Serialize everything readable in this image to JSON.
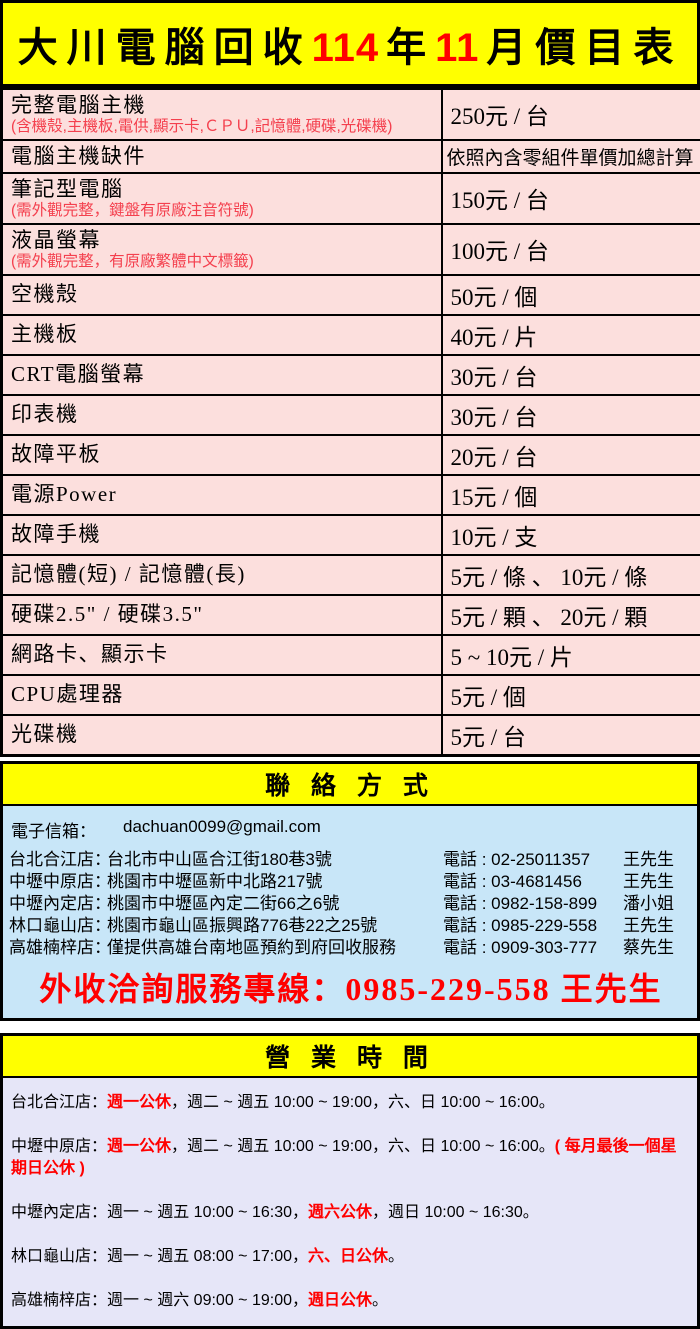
{
  "title": {
    "segments": [
      {
        "text": "大川電腦回收",
        "color": "black",
        "type": "cjk"
      },
      {
        "text": "114",
        "color": "red",
        "type": "num"
      },
      {
        "text": "年",
        "color": "black",
        "type": "cjk"
      },
      {
        "text": "11",
        "color": "red",
        "type": "num"
      },
      {
        "text": "月價目表",
        "color": "black",
        "type": "cjk"
      }
    ]
  },
  "price_table": {
    "rows": [
      {
        "item": "完整電腦主機",
        "note": "(含機殼,主機板,電供,顯示卡,ＣＰＵ,記憶體,硬碟,光碟機)",
        "price": "250元 / 台"
      },
      {
        "item": "電腦主機缺件",
        "price": "依照內含零組件單價加總計算"
      },
      {
        "item": "筆記型電腦",
        "note": "(需外觀完整，鍵盤有原廠注音符號)",
        "price": "150元 / 台"
      },
      {
        "item": "液晶螢幕",
        "note": "(需外觀完整，有原廠繁體中文標籤)",
        "price": "100元 / 台"
      },
      {
        "item": "空機殼",
        "price": "50元 / 個"
      },
      {
        "item": "主機板",
        "price": "40元 / 片"
      },
      {
        "item": "CRT電腦螢幕",
        "price": "30元 / 台"
      },
      {
        "item": "印表機",
        "price": "30元 / 台"
      },
      {
        "item": "故障平板",
        "price": "20元 / 台"
      },
      {
        "item": "電源Power",
        "price": "15元 / 個"
      },
      {
        "item": "故障手機",
        "price": "10元 / 支"
      },
      {
        "item": "記憶體(短) / 記憶體(長)",
        "price": "5元 / 條 、 10元 / 條"
      },
      {
        "item": "硬碟2.5\" / 硬碟3.5\"",
        "price": "5元 / 顆 、 20元 / 顆"
      },
      {
        "item": "網路卡、顯示卡",
        "price": "5 ~ 10元 / 片"
      },
      {
        "item": "CPU處理器",
        "price": "5元 / 個"
      },
      {
        "item": "光碟機",
        "price": "5元 / 台"
      }
    ]
  },
  "contact": {
    "header": "聯 絡 方 式",
    "email_label": "電子信箱：",
    "email": "dachuan0099@gmail.com",
    "phone_label": "電話 : ",
    "stores": [
      {
        "name": "台北合江店：",
        "address": "台北市中山區合江街180巷3號",
        "phone": "02-25011357",
        "person": "王先生"
      },
      {
        "name": "中壢中原店：",
        "address": "桃園市中壢區新中北路217號",
        "phone": "03-4681456",
        "person": "王先生"
      },
      {
        "name": "中壢內定店：",
        "address": "桃園市中壢區內定二街66之6號",
        "phone": "0982-158-899",
        "person": "潘小姐"
      },
      {
        "name": "林口龜山店：",
        "address": "桃園市龜山區振興路776巷22之25號",
        "phone": "0985-229-558",
        "person": "王先生"
      },
      {
        "name": "高雄楠梓店：",
        "address": "僅提供高雄台南地區預約到府回收服務",
        "phone": "0909-303-777",
        "person": "蔡先生"
      }
    ],
    "hotline": "外收洽詢服務專線：0985-229-558 王先生"
  },
  "hours": {
    "header": "營 業 時 間",
    "lines": [
      {
        "segments": [
          {
            "text": "台北合江店：",
            "red": false
          },
          {
            "text": "週一公休",
            "red": true
          },
          {
            "text": "，週二 ~ 週五 10:00 ~ 19:00，六、日 10:00 ~ 16:00。",
            "red": false
          }
        ]
      },
      {
        "segments": [
          {
            "text": "中壢中原店：",
            "red": false
          },
          {
            "text": "週一公休",
            "red": true
          },
          {
            "text": "，週二 ~ 週五 10:00 ~ 19:00，六、日 10:00 ~ 16:00。",
            "red": false
          },
          {
            "text": "( 每月最後一個星期日公休 )",
            "red": true
          }
        ]
      },
      {
        "segments": [
          {
            "text": "中壢內定店：週一 ~ 週五 10:00 ~ 16:30，",
            "red": false
          },
          {
            "text": "週六公休",
            "red": true
          },
          {
            "text": "，週日 10:00 ~ 16:30。",
            "red": false
          }
        ]
      },
      {
        "segments": [
          {
            "text": "林口龜山店：週一 ~ 週五 08:00 ~ 17:00，",
            "red": false
          },
          {
            "text": "六、日公休",
            "red": true
          },
          {
            "text": "。",
            "red": false
          }
        ]
      },
      {
        "segments": [
          {
            "text": "高雄楠梓店：週一 ~ 週六 09:00 ~ 19:00，",
            "red": false
          },
          {
            "text": "週日公休",
            "red": true
          },
          {
            "text": "。",
            "red": false
          }
        ]
      }
    ]
  },
  "colors": {
    "title_bg": "#ffff00",
    "table_bg": "#fcdfdd",
    "contact_bg": "#c8e6f8",
    "hours_bg": "#e6e6f8",
    "accent_red": "#ff0000",
    "note_red": "#f4404e"
  }
}
